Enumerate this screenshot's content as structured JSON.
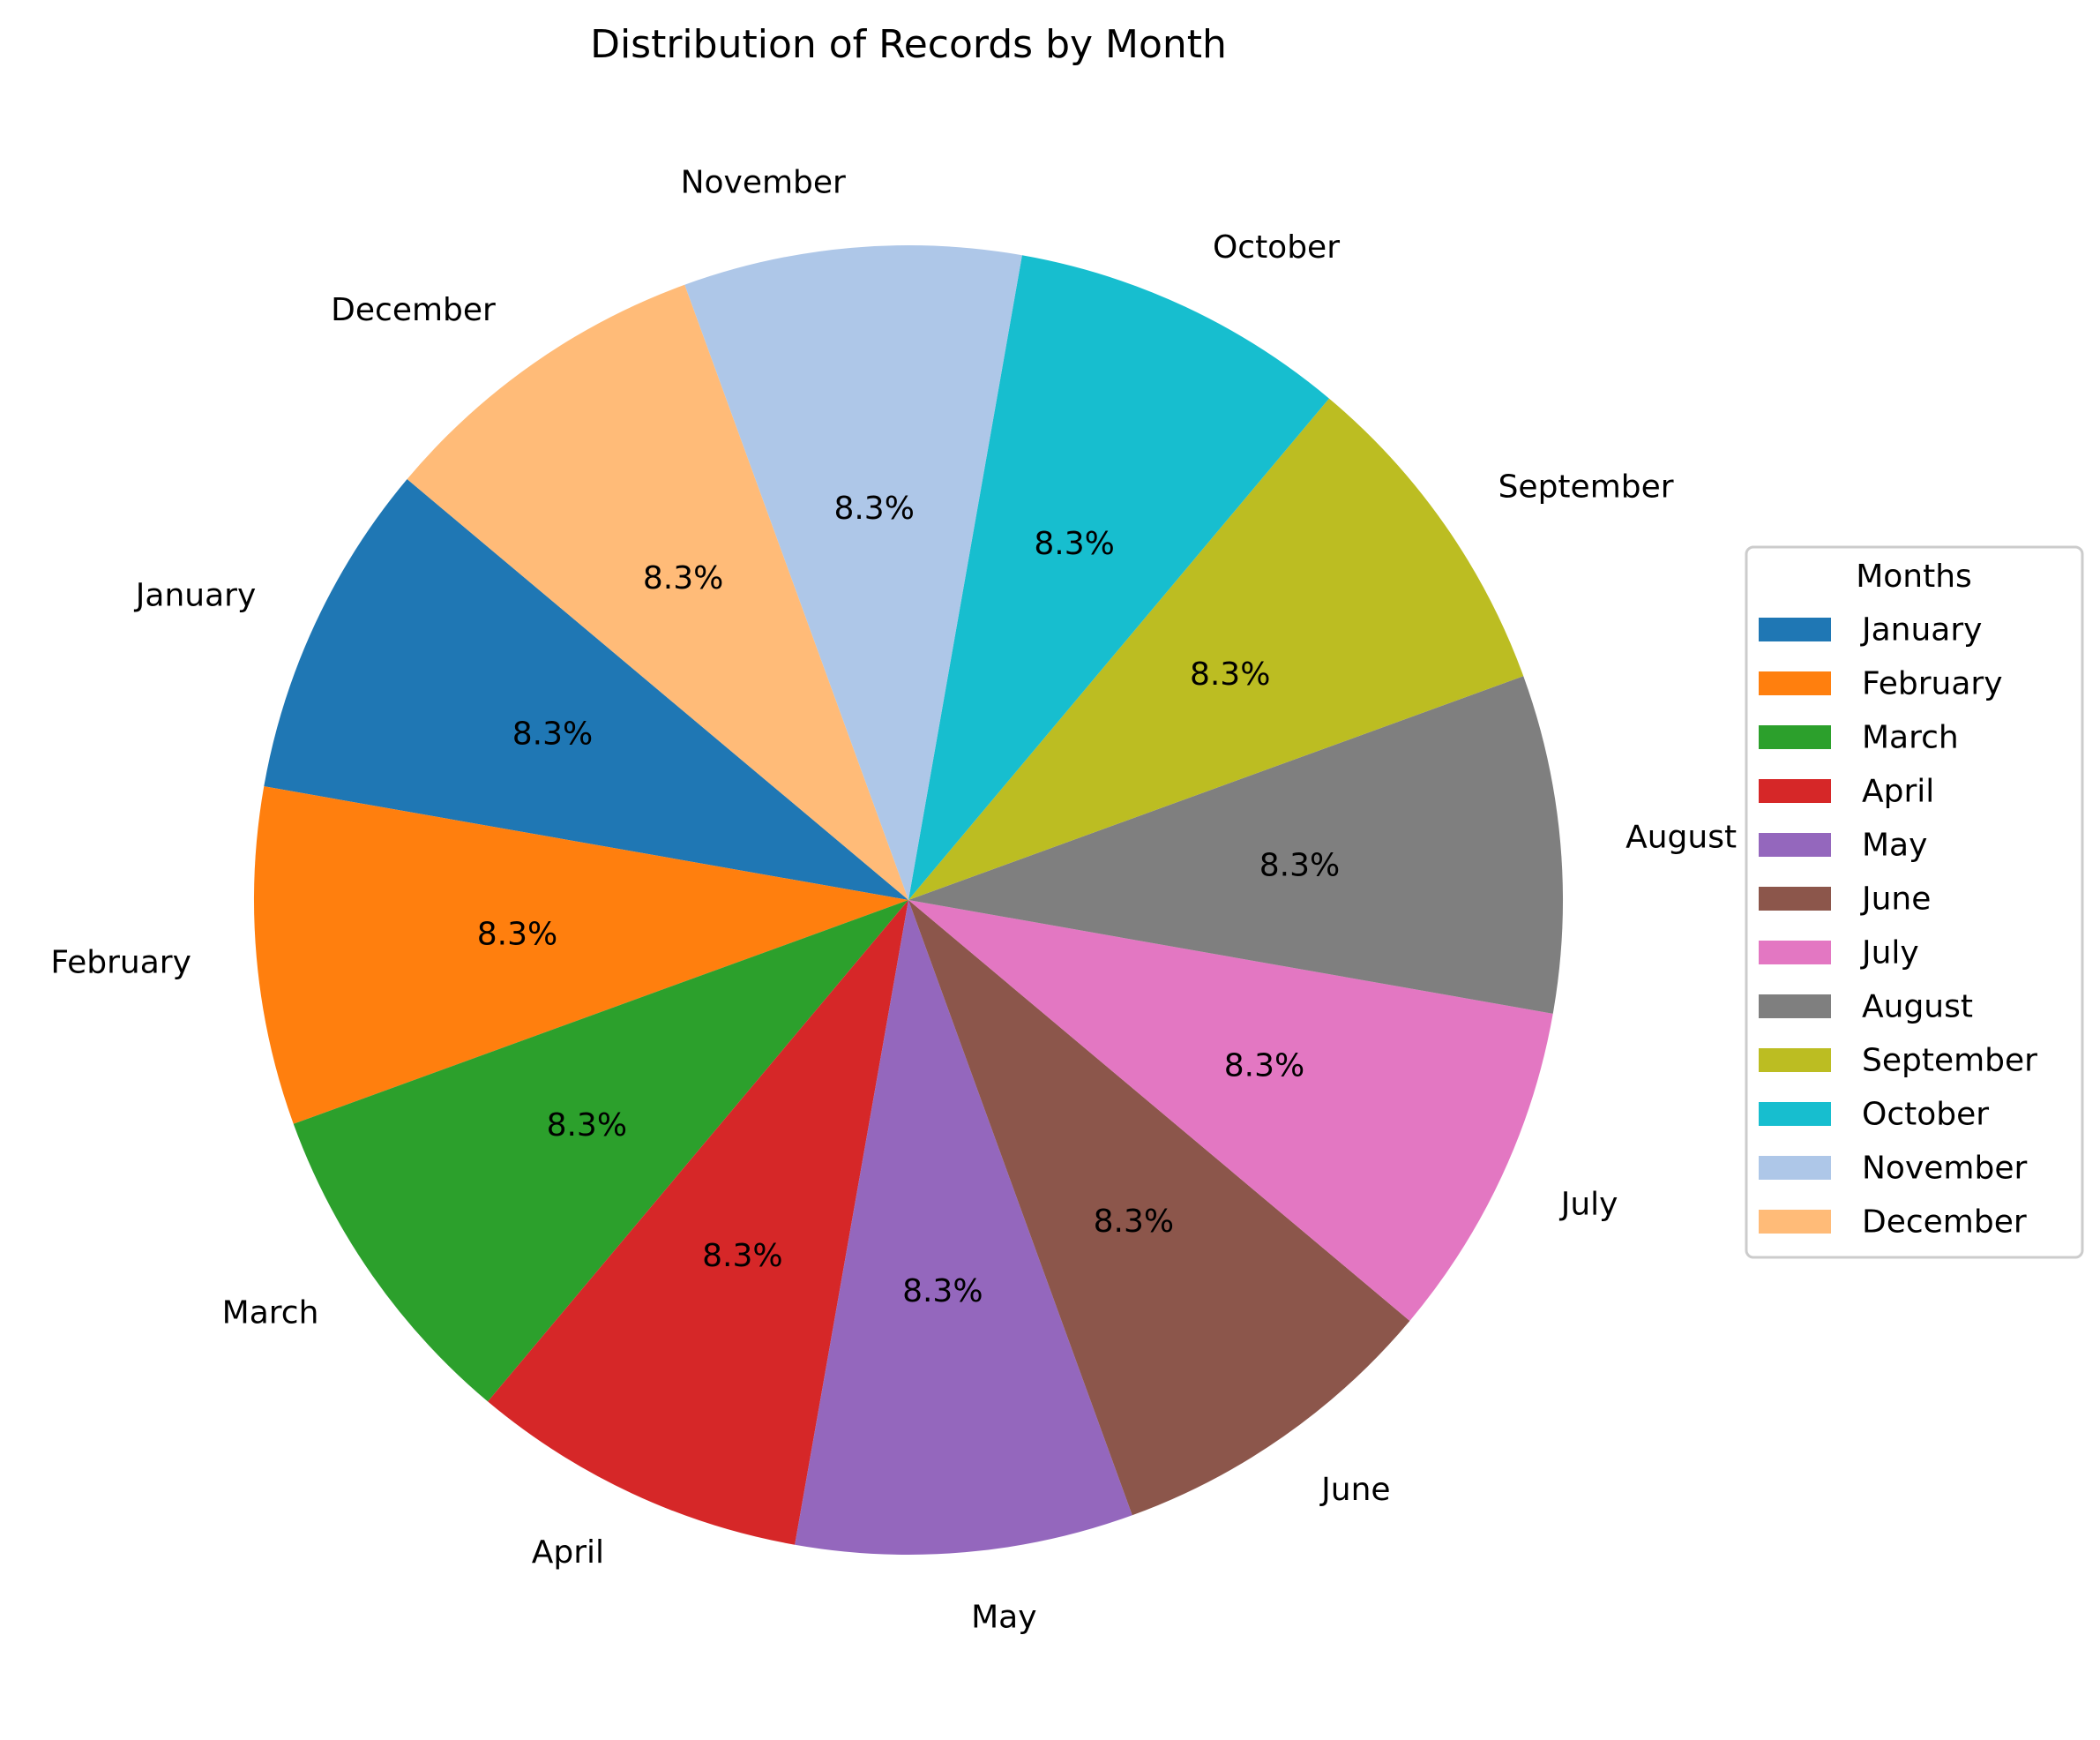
{
  "chart_data": {
    "type": "pie",
    "title": "Distribution of Records by Month",
    "categories": [
      "January",
      "February",
      "March",
      "April",
      "May",
      "June",
      "July",
      "August",
      "September",
      "October",
      "November",
      "December"
    ],
    "values": [
      8.3,
      8.3,
      8.3,
      8.3,
      8.3,
      8.3,
      8.3,
      8.3,
      8.3,
      8.3,
      8.3,
      8.3
    ],
    "percent_labels": [
      "8.3%",
      "8.3%",
      "8.3%",
      "8.3%",
      "8.3%",
      "8.3%",
      "8.3%",
      "8.3%",
      "8.3%",
      "8.3%",
      "8.3%",
      "8.3%"
    ],
    "colors": [
      "#1f77b4",
      "#ff7f0e",
      "#2ca02c",
      "#d62728",
      "#9467bd",
      "#8c564b",
      "#e377c2",
      "#7f7f7f",
      "#bcbd22",
      "#17becf",
      "#aec7e8",
      "#ffbb78"
    ],
    "start_angle_deg": 140,
    "direction": "counterclockwise",
    "legend": {
      "title": "Months",
      "placement": "right",
      "entries": [
        "January",
        "February",
        "March",
        "April",
        "May",
        "June",
        "July",
        "August",
        "September",
        "October",
        "November",
        "December"
      ]
    }
  }
}
